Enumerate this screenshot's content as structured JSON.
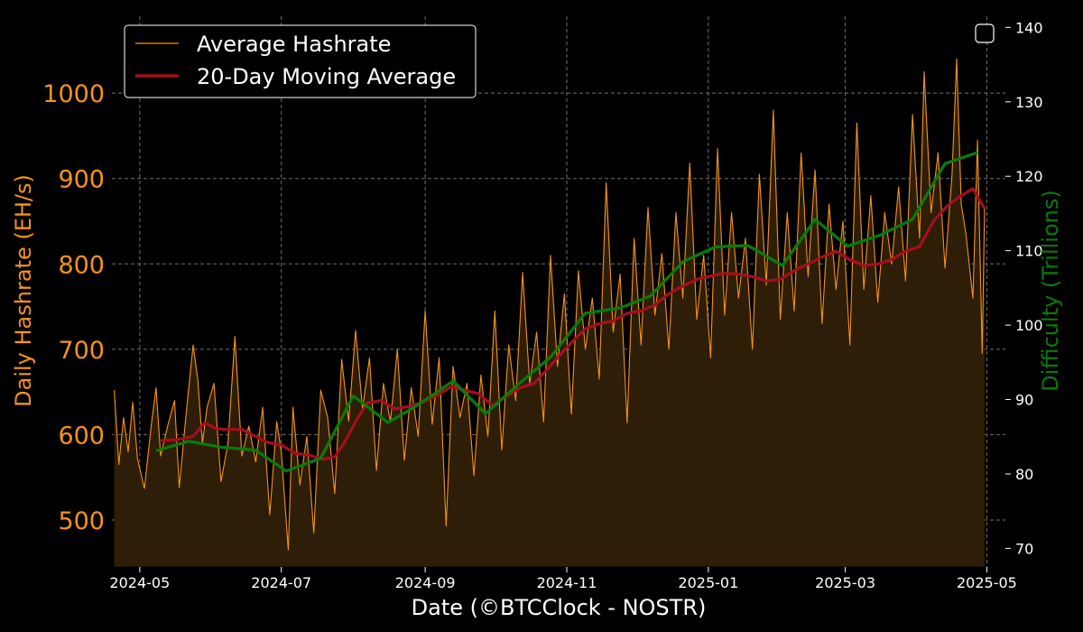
{
  "chart_data": {
    "type": "line",
    "title": "",
    "xlabel": "Date (©BTCClock - NOSTR)",
    "ylabel_left": "Daily Hashrate (EH/s)",
    "ylabel_right": "Difficulty (Trillions)",
    "x_ticks": [
      "2024-05",
      "2024-07",
      "2024-09",
      "2024-11",
      "2025-01",
      "2025-03",
      "2025-05"
    ],
    "y_left_ticks": [
      500,
      600,
      700,
      800,
      900,
      1000
    ],
    "y_right_ticks": [
      70,
      80,
      90,
      100,
      110,
      120,
      130,
      140
    ],
    "x_range": [
      "2024-04-19",
      "2025-05-09"
    ],
    "y_left_range": [
      445,
      1090
    ],
    "y_right_range": [
      67.5,
      141.5
    ],
    "grid": true,
    "legend_position": "top-left",
    "colors": {
      "hashrate": "#F7931A",
      "moving_average": "#A50E1E",
      "difficulty": "#0A7A0A",
      "fill": "#2E1E08",
      "grid": "#6f6f6f"
    },
    "series": [
      {
        "name": "Average Hashrate",
        "axis": "left",
        "points": [
          [
            "2024-04-20",
            652
          ],
          [
            "2024-04-22",
            565
          ],
          [
            "2024-04-24",
            620
          ],
          [
            "2024-04-26",
            580
          ],
          [
            "2024-04-28",
            638
          ],
          [
            "2024-04-30",
            572
          ],
          [
            "2024-05-03",
            537
          ],
          [
            "2024-05-06",
            612
          ],
          [
            "2024-05-08",
            655
          ],
          [
            "2024-05-10",
            575
          ],
          [
            "2024-05-13",
            610
          ],
          [
            "2024-05-16",
            640
          ],
          [
            "2024-05-18",
            538
          ],
          [
            "2024-05-21",
            625
          ],
          [
            "2024-05-24",
            705
          ],
          [
            "2024-05-26",
            665
          ],
          [
            "2024-05-28",
            590
          ],
          [
            "2024-05-30",
            632
          ],
          [
            "2024-06-02",
            660
          ],
          [
            "2024-06-05",
            545
          ],
          [
            "2024-06-08",
            590
          ],
          [
            "2024-06-11",
            715
          ],
          [
            "2024-06-14",
            575
          ],
          [
            "2024-06-17",
            610
          ],
          [
            "2024-06-20",
            568
          ],
          [
            "2024-06-23",
            632
          ],
          [
            "2024-06-26",
            506
          ],
          [
            "2024-06-29",
            615
          ],
          [
            "2024-07-01",
            580
          ],
          [
            "2024-07-04",
            465
          ],
          [
            "2024-07-06",
            632
          ],
          [
            "2024-07-09",
            541
          ],
          [
            "2024-07-12",
            598
          ],
          [
            "2024-07-15",
            485
          ],
          [
            "2024-07-18",
            652
          ],
          [
            "2024-07-21",
            620
          ],
          [
            "2024-07-24",
            531
          ],
          [
            "2024-07-27",
            688
          ],
          [
            "2024-07-30",
            616
          ],
          [
            "2024-08-02",
            722
          ],
          [
            "2024-08-05",
            630
          ],
          [
            "2024-08-08",
            690
          ],
          [
            "2024-08-11",
            558
          ],
          [
            "2024-08-14",
            660
          ],
          [
            "2024-08-17",
            615
          ],
          [
            "2024-08-20",
            700
          ],
          [
            "2024-08-23",
            570
          ],
          [
            "2024-08-26",
            655
          ],
          [
            "2024-08-29",
            598
          ],
          [
            "2024-09-01",
            745
          ],
          [
            "2024-09-04",
            612
          ],
          [
            "2024-09-07",
            690
          ],
          [
            "2024-09-10",
            493
          ],
          [
            "2024-09-13",
            680
          ],
          [
            "2024-09-16",
            620
          ],
          [
            "2024-09-19",
            660
          ],
          [
            "2024-09-22",
            552
          ],
          [
            "2024-09-25",
            670
          ],
          [
            "2024-09-28",
            598
          ],
          [
            "2024-10-01",
            745
          ],
          [
            "2024-10-04",
            582
          ],
          [
            "2024-10-07",
            705
          ],
          [
            "2024-10-10",
            640
          ],
          [
            "2024-10-13",
            790
          ],
          [
            "2024-10-16",
            660
          ],
          [
            "2024-10-19",
            720
          ],
          [
            "2024-10-22",
            615
          ],
          [
            "2024-10-25",
            810
          ],
          [
            "2024-10-28",
            680
          ],
          [
            "2024-10-31",
            765
          ],
          [
            "2024-11-03",
            624
          ],
          [
            "2024-11-06",
            792
          ],
          [
            "2024-11-09",
            700
          ],
          [
            "2024-11-12",
            760
          ],
          [
            "2024-11-15",
            665
          ],
          [
            "2024-11-18",
            895
          ],
          [
            "2024-11-21",
            720
          ],
          [
            "2024-11-24",
            788
          ],
          [
            "2024-11-27",
            614
          ],
          [
            "2024-11-30",
            830
          ],
          [
            "2024-12-03",
            705
          ],
          [
            "2024-12-06",
            866
          ],
          [
            "2024-12-09",
            740
          ],
          [
            "2024-12-12",
            812
          ],
          [
            "2024-12-15",
            700
          ],
          [
            "2024-12-18",
            860
          ],
          [
            "2024-12-21",
            760
          ],
          [
            "2024-12-24",
            918
          ],
          [
            "2024-12-27",
            735
          ],
          [
            "2024-12-30",
            810
          ],
          [
            "2025-01-02",
            690
          ],
          [
            "2025-01-05",
            935
          ],
          [
            "2025-01-08",
            740
          ],
          [
            "2025-01-11",
            860
          ],
          [
            "2025-01-14",
            760
          ],
          [
            "2025-01-17",
            830
          ],
          [
            "2025-01-20",
            700
          ],
          [
            "2025-01-23",
            905
          ],
          [
            "2025-01-26",
            775
          ],
          [
            "2025-01-29",
            980
          ],
          [
            "2025-02-01",
            735
          ],
          [
            "2025-02-04",
            860
          ],
          [
            "2025-02-07",
            745
          ],
          [
            "2025-02-10",
            930
          ],
          [
            "2025-02-13",
            785
          ],
          [
            "2025-02-16",
            910
          ],
          [
            "2025-02-19",
            730
          ],
          [
            "2025-02-22",
            870
          ],
          [
            "2025-02-25",
            770
          ],
          [
            "2025-02-28",
            850
          ],
          [
            "2025-03-03",
            705
          ],
          [
            "2025-03-06",
            965
          ],
          [
            "2025-03-09",
            770
          ],
          [
            "2025-03-12",
            880
          ],
          [
            "2025-03-15",
            755
          ],
          [
            "2025-03-18",
            860
          ],
          [
            "2025-03-21",
            800
          ],
          [
            "2025-03-24",
            890
          ],
          [
            "2025-03-27",
            780
          ],
          [
            "2025-03-30",
            975
          ],
          [
            "2025-04-02",
            830
          ],
          [
            "2025-04-04",
            1025
          ],
          [
            "2025-04-07",
            860
          ],
          [
            "2025-04-10",
            930
          ],
          [
            "2025-04-13",
            795
          ],
          [
            "2025-04-16",
            905
          ],
          [
            "2025-04-18",
            1040
          ],
          [
            "2025-04-20",
            870
          ],
          [
            "2025-04-22",
            835
          ],
          [
            "2025-04-25",
            760
          ],
          [
            "2025-04-27",
            945
          ],
          [
            "2025-04-29",
            695
          ],
          [
            "2025-04-30",
            865
          ]
        ]
      },
      {
        "name": "20-Day Moving Average",
        "axis": "left",
        "points": [
          [
            "2024-05-10",
            593
          ],
          [
            "2024-05-17",
            594
          ],
          [
            "2024-05-24",
            598
          ],
          [
            "2024-05-29",
            614
          ],
          [
            "2024-06-03",
            607
          ],
          [
            "2024-06-08",
            606
          ],
          [
            "2024-06-14",
            606
          ],
          [
            "2024-06-20",
            598
          ],
          [
            "2024-06-25",
            591
          ],
          [
            "2024-07-01",
            588
          ],
          [
            "2024-07-07",
            578
          ],
          [
            "2024-07-13",
            576
          ],
          [
            "2024-07-19",
            571
          ],
          [
            "2024-07-24",
            574
          ],
          [
            "2024-07-28",
            590
          ],
          [
            "2024-08-02",
            615
          ],
          [
            "2024-08-07",
            637
          ],
          [
            "2024-08-13",
            640
          ],
          [
            "2024-08-19",
            630
          ],
          [
            "2024-08-25",
            633
          ],
          [
            "2024-08-31",
            638
          ],
          [
            "2024-09-06",
            646
          ],
          [
            "2024-09-12",
            656
          ],
          [
            "2024-09-18",
            652
          ],
          [
            "2024-09-24",
            648
          ],
          [
            "2024-09-30",
            634
          ],
          [
            "2024-10-06",
            645
          ],
          [
            "2024-10-12",
            655
          ],
          [
            "2024-10-18",
            660
          ],
          [
            "2024-10-23",
            675
          ],
          [
            "2024-10-28",
            690
          ],
          [
            "2024-11-03",
            708
          ],
          [
            "2024-11-09",
            724
          ],
          [
            "2024-11-15",
            730
          ],
          [
            "2024-11-21",
            733
          ],
          [
            "2024-11-27",
            742
          ],
          [
            "2024-12-03",
            745
          ],
          [
            "2024-12-09",
            752
          ],
          [
            "2024-12-15",
            765
          ],
          [
            "2024-12-21",
            774
          ],
          [
            "2024-12-27",
            782
          ],
          [
            "2025-01-02",
            786
          ],
          [
            "2025-01-08",
            789
          ],
          [
            "2025-01-14",
            788
          ],
          [
            "2025-01-20",
            785
          ],
          [
            "2025-01-26",
            780
          ],
          [
            "2025-02-01",
            782
          ],
          [
            "2025-02-07",
            792
          ],
          [
            "2025-02-13",
            800
          ],
          [
            "2025-02-19",
            808
          ],
          [
            "2025-02-25",
            815
          ],
          [
            "2025-03-03",
            805
          ],
          [
            "2025-03-09",
            798
          ],
          [
            "2025-03-15",
            800
          ],
          [
            "2025-03-21",
            805
          ],
          [
            "2025-03-27",
            815
          ],
          [
            "2025-04-02",
            820
          ],
          [
            "2025-04-08",
            850
          ],
          [
            "2025-04-14",
            868
          ],
          [
            "2025-04-20",
            880
          ],
          [
            "2025-04-25",
            888
          ],
          [
            "2025-04-30",
            865
          ]
        ]
      },
      {
        "name": "Difficulty",
        "axis": "right",
        "points": [
          [
            "2024-05-08",
            83.1
          ],
          [
            "2024-05-22",
            84.4
          ],
          [
            "2024-06-05",
            83.6
          ],
          [
            "2024-06-20",
            83.2
          ],
          [
            "2024-07-03",
            80.4
          ],
          [
            "2024-07-18",
            82.1
          ],
          [
            "2024-08-01",
            90.5
          ],
          [
            "2024-08-16",
            86.9
          ],
          [
            "2024-08-30",
            89.5
          ],
          [
            "2024-09-13",
            92.5
          ],
          [
            "2024-09-27",
            88.1
          ],
          [
            "2024-10-11",
            92.0
          ],
          [
            "2024-10-25",
            95.7
          ],
          [
            "2024-11-09",
            101.6
          ],
          [
            "2024-11-24",
            102.3
          ],
          [
            "2024-12-07",
            103.9
          ],
          [
            "2024-12-21",
            108.5
          ],
          [
            "2025-01-04",
            110.5
          ],
          [
            "2025-01-18",
            110.7
          ],
          [
            "2025-02-02",
            108.0
          ],
          [
            "2025-02-16",
            114.2
          ],
          [
            "2025-03-02",
            110.6
          ],
          [
            "2025-03-16",
            112.1
          ],
          [
            "2025-03-30",
            114.2
          ],
          [
            "2025-04-13",
            121.7
          ],
          [
            "2025-04-27",
            123.2
          ]
        ]
      }
    ]
  }
}
